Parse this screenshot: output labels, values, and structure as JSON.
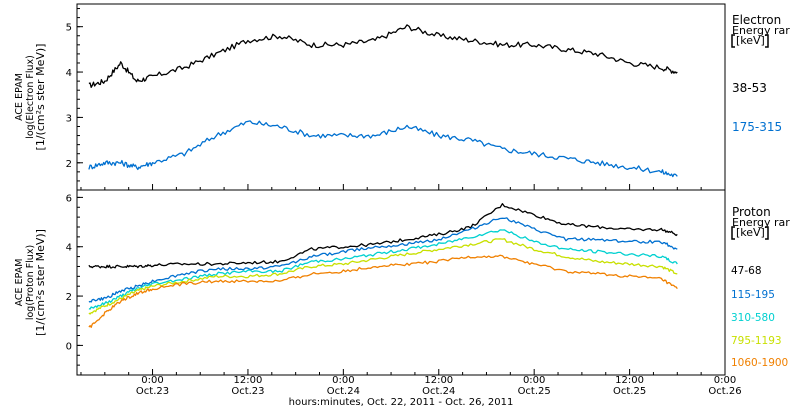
{
  "chart_data": [
    {
      "type": "line",
      "panel": "electron",
      "ylabel_lines": [
        "ACE EPAM",
        "log(Electron Flux)",
        "[1/(cm²s ster MeV)]"
      ],
      "ylim": [
        1.4,
        5.5
      ],
      "yticks": [
        2,
        3,
        4,
        5
      ],
      "legend_title_lines": [
        "Electron",
        "Energy rar",
        "[keV]"
      ],
      "x": [
        "Oct 22 16:00",
        "Oct 22 18:00",
        "Oct 22 20:00",
        "Oct 22 22:00",
        "Oct 23 00:00",
        "Oct 23 04:00",
        "Oct 23 08:00",
        "Oct 23 12:00",
        "Oct 23 16:00",
        "Oct 23 20:00",
        "Oct 24 00:00",
        "Oct 24 04:00",
        "Oct 24 08:00",
        "Oct 24 12:00",
        "Oct 24 16:00",
        "Oct 24 20:00",
        "Oct 25 00:00",
        "Oct 25 04:00",
        "Oct 25 08:00",
        "Oct 25 12:00",
        "Oct 25 16:00",
        "Oct 25 18:00"
      ],
      "series": [
        {
          "name": "38-53",
          "color": "#000000",
          "values": [
            3.7,
            3.8,
            4.2,
            3.8,
            3.9,
            4.1,
            4.4,
            4.7,
            4.8,
            4.6,
            4.6,
            4.7,
            5.0,
            4.8,
            4.7,
            4.6,
            4.6,
            4.5,
            4.4,
            4.2,
            4.1,
            4.0
          ]
        },
        {
          "name": "175-315",
          "color": "#0070d0",
          "values": [
            1.9,
            2.0,
            2.0,
            1.9,
            2.0,
            2.2,
            2.6,
            2.9,
            2.8,
            2.6,
            2.6,
            2.6,
            2.8,
            2.6,
            2.5,
            2.3,
            2.2,
            2.1,
            2.0,
            1.9,
            1.8,
            1.7
          ]
        }
      ]
    },
    {
      "type": "line",
      "panel": "proton",
      "ylabel_lines": [
        "ACE EPAM",
        "log(Proton Flux)",
        "[1/(cm²s ster MeV)]"
      ],
      "ylim": [
        -1.2,
        6.3
      ],
      "yticks": [
        0,
        2,
        4,
        6
      ],
      "legend_title_lines": [
        "Proton",
        "Energy rar",
        "[keV]"
      ],
      "x": [
        "Oct 22 16:00",
        "Oct 22 18:00",
        "Oct 22 20:00",
        "Oct 22 22:00",
        "Oct 23 00:00",
        "Oct 23 04:00",
        "Oct 23 08:00",
        "Oct 23 12:00",
        "Oct 23 16:00",
        "Oct 23 20:00",
        "Oct 24 00:00",
        "Oct 24 04:00",
        "Oct 24 08:00",
        "Oct 24 12:00",
        "Oct 24 16:00",
        "Oct 24 20:00",
        "Oct 25 00:00",
        "Oct 25 04:00",
        "Oct 25 08:00",
        "Oct 25 12:00",
        "Oct 25 16:00",
        "Oct 25 18:00"
      ],
      "series": [
        {
          "name": "47-68",
          "color": "#000000",
          "values": [
            3.2,
            3.2,
            3.2,
            3.2,
            3.25,
            3.3,
            3.3,
            3.35,
            3.4,
            3.9,
            4.0,
            4.1,
            4.3,
            4.5,
            4.8,
            5.7,
            5.3,
            4.9,
            4.8,
            4.7,
            4.7,
            4.5
          ]
        },
        {
          "name": "115-195",
          "color": "#0070d0",
          "values": [
            1.8,
            1.9,
            2.2,
            2.4,
            2.6,
            2.9,
            3.1,
            3.1,
            3.2,
            3.6,
            3.8,
            4.0,
            4.1,
            4.3,
            4.7,
            5.2,
            4.7,
            4.3,
            4.3,
            4.2,
            4.2,
            3.9
          ]
        },
        {
          "name": "310-580",
          "color": "#00d0d0",
          "values": [
            1.5,
            1.7,
            2.0,
            2.3,
            2.5,
            2.7,
            2.9,
            3.0,
            3.0,
            3.4,
            3.5,
            3.7,
            3.9,
            4.1,
            4.4,
            4.7,
            4.2,
            3.9,
            3.8,
            3.7,
            3.6,
            3.3
          ]
        },
        {
          "name": "795-1193",
          "color": "#c8e000",
          "values": [
            1.3,
            1.6,
            1.9,
            2.2,
            2.4,
            2.6,
            2.8,
            2.8,
            2.9,
            3.2,
            3.3,
            3.5,
            3.7,
            3.9,
            4.1,
            4.3,
            3.9,
            3.6,
            3.4,
            3.3,
            3.2,
            2.9
          ]
        },
        {
          "name": "1060-1900",
          "color": "#f08000",
          "values": [
            0.7,
            1.3,
            1.8,
            2.1,
            2.3,
            2.5,
            2.6,
            2.6,
            2.6,
            2.9,
            3.0,
            3.2,
            3.3,
            3.4,
            3.6,
            3.6,
            3.3,
            3.0,
            2.9,
            2.8,
            2.7,
            2.3
          ]
        }
      ]
    }
  ],
  "xaxis": {
    "ticks": [
      {
        "time": "0:00",
        "date": "Oct.23"
      },
      {
        "time": "12:00",
        "date": "Oct.23"
      },
      {
        "time": "0:00",
        "date": "Oct.24"
      },
      {
        "time": "12:00",
        "date": "Oct.24"
      },
      {
        "time": "0:00",
        "date": "Oct.25"
      },
      {
        "time": "12:00",
        "date": "Oct.25"
      },
      {
        "time": "0:00",
        "date": "Oct.26"
      }
    ],
    "label": "hours:minutes, Oct. 22, 2011 - Oct. 26, 2011",
    "range": [
      "Oct 22 14:30",
      "Oct 26 00:00"
    ]
  }
}
